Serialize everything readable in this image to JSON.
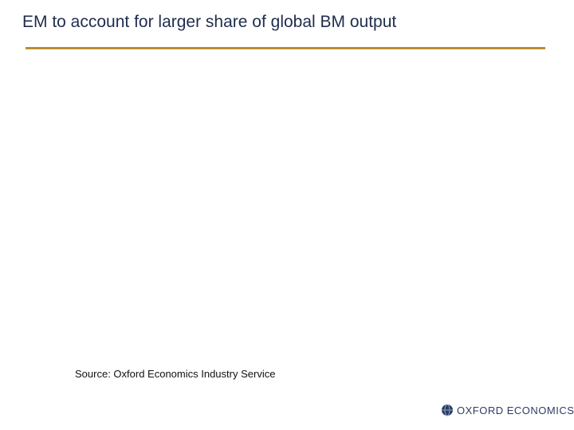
{
  "header": {
    "title": "EM to account for larger share of global BM output"
  },
  "source": "Source: Oxford Economics Industry Service",
  "logo": {
    "text": "OXFORD ECONOMICS"
  }
}
